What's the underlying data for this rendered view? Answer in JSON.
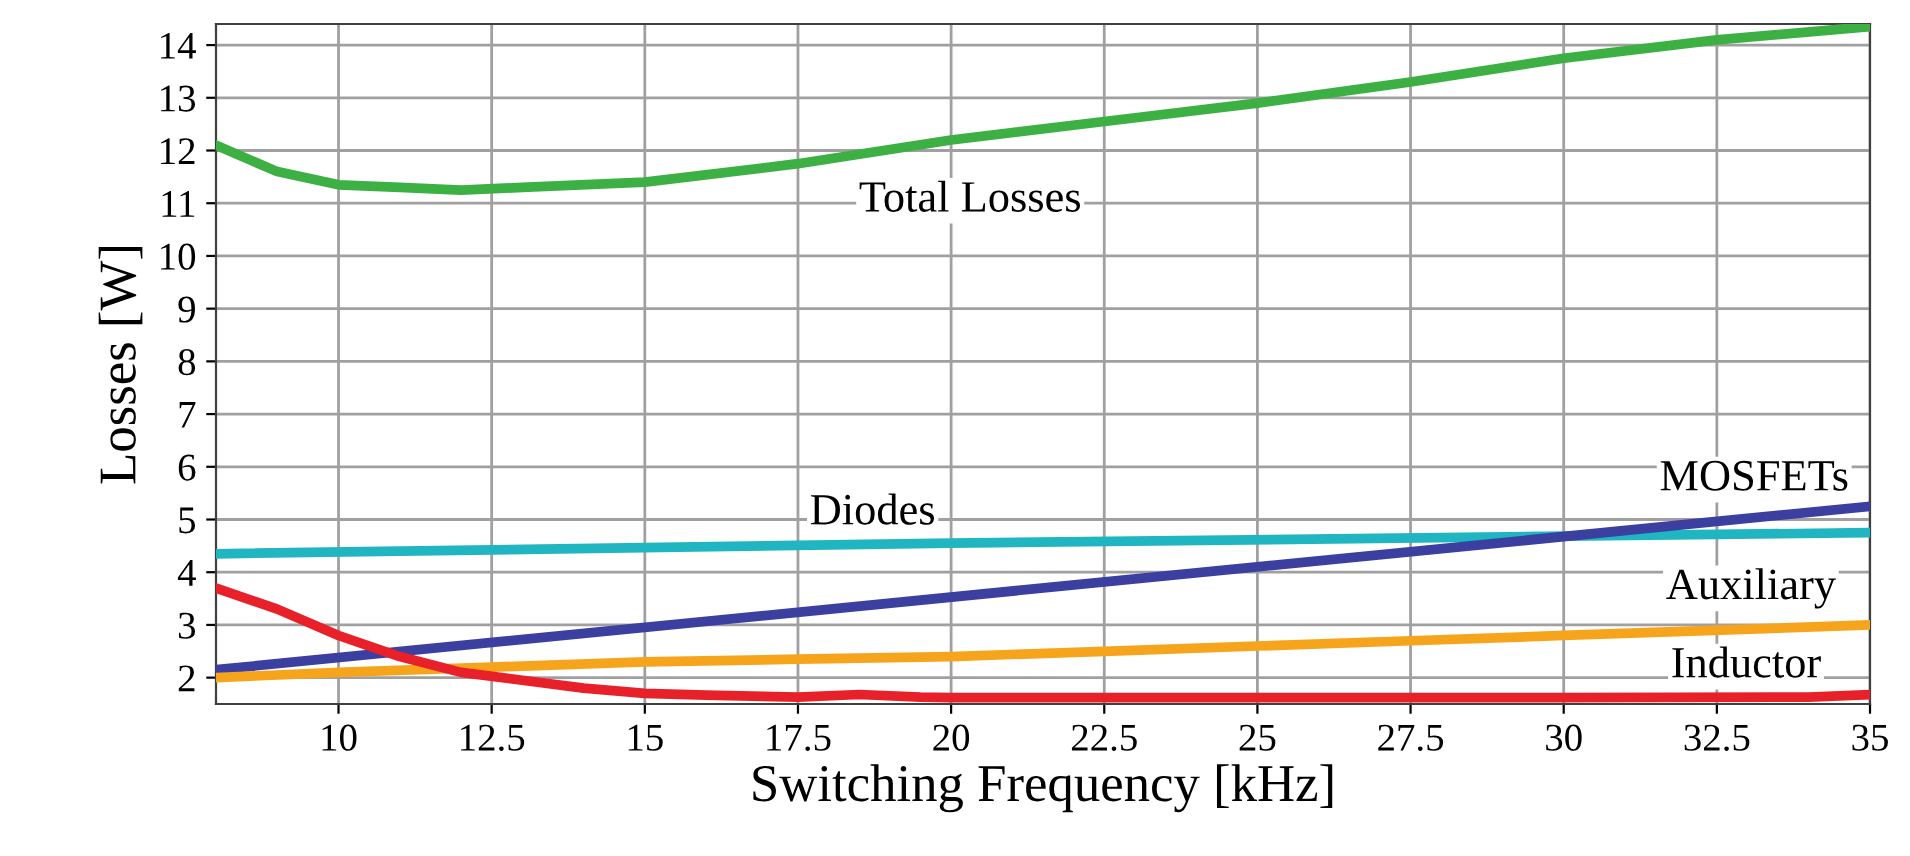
{
  "chart_data": {
    "type": "line",
    "xlabel": "Switching Frequency [kHz]",
    "ylabel": "Losses [W]",
    "xlim": [
      8,
      35
    ],
    "xticks": [
      10,
      12.5,
      15,
      17.5,
      20,
      22.5,
      25,
      27.5,
      30,
      32.5,
      35
    ],
    "ylim": [
      1.5,
      14.4
    ],
    "yticks": [
      2,
      3,
      4,
      5,
      6,
      7,
      8,
      9,
      10,
      11,
      12,
      13,
      14
    ],
    "grid": true,
    "line_style": "solid",
    "series": [
      {
        "name": "Total Losses",
        "color": "#3cb043",
        "x": [
          8,
          9,
          10,
          11,
          12,
          13,
          15,
          17.5,
          20,
          22.5,
          25,
          27.5,
          30,
          32.5,
          35
        ],
        "values": [
          12.1,
          11.6,
          11.35,
          11.3,
          11.25,
          11.3,
          11.4,
          11.75,
          12.2,
          12.55,
          12.9,
          13.3,
          13.75,
          14.1,
          14.35
        ]
      },
      {
        "name": "Diodes",
        "color": "#1fb5c1",
        "x": [
          8,
          20,
          35
        ],
        "values": [
          4.35,
          4.55,
          4.75
        ]
      },
      {
        "name": "MOSFETs",
        "color": "#3a3fa0",
        "x": [
          8,
          35
        ],
        "values": [
          2.15,
          5.25
        ]
      },
      {
        "name": "Auxiliary",
        "color": "#f7a41d",
        "x": [
          8,
          10,
          12.5,
          15,
          17.5,
          20,
          22.5,
          25,
          27.5,
          30,
          35
        ],
        "values": [
          2.0,
          2.1,
          2.2,
          2.3,
          2.35,
          2.4,
          2.5,
          2.6,
          2.7,
          2.8,
          3.0
        ]
      },
      {
        "name": "Inductor",
        "color": "#e8202a",
        "x": [
          8,
          9,
          10,
          11,
          12,
          13,
          14,
          15,
          16,
          17.5,
          18.5,
          19.5,
          20,
          25,
          30,
          34,
          35
        ],
        "values": [
          3.7,
          3.3,
          2.8,
          2.4,
          2.1,
          1.95,
          1.8,
          1.7,
          1.67,
          1.63,
          1.68,
          1.63,
          1.62,
          1.62,
          1.62,
          1.63,
          1.68
        ]
      }
    ]
  }
}
